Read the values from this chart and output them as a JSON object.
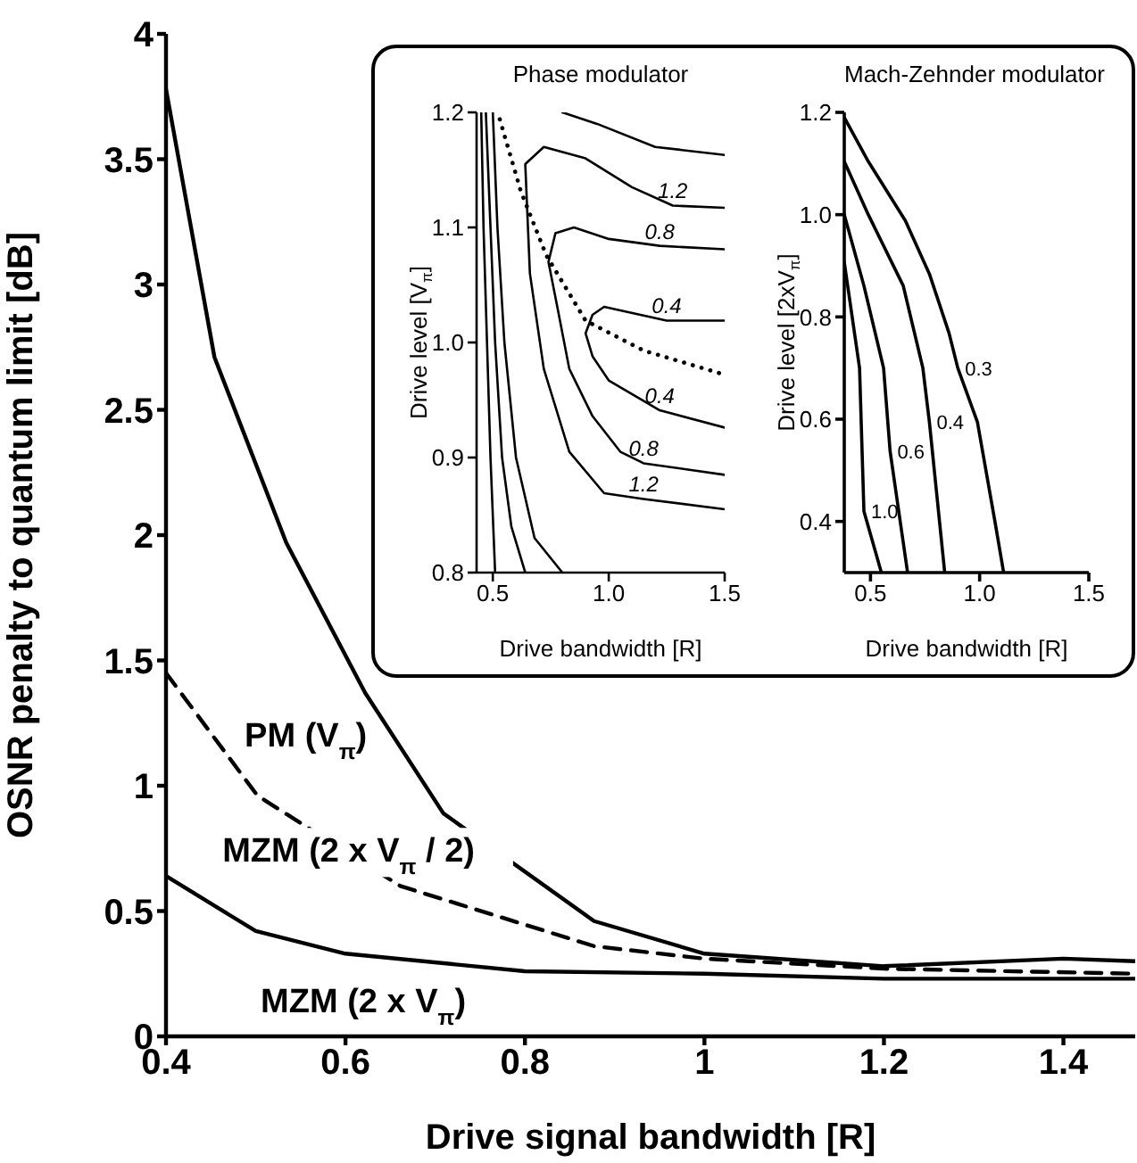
{
  "chart_data": [
    {
      "type": "line",
      "xlabel": "Drive signal bandwidth [R]",
      "ylabel": "OSNR penalty to quantum limit [dB]",
      "xlim": [
        0.4,
        1.48
      ],
      "xticks": [
        0.4,
        0.6,
        0.8,
        1,
        1.2,
        1.4
      ],
      "ylim": [
        0,
        4
      ],
      "yticks": [
        0,
        0.5,
        1,
        1.5,
        2,
        2.5,
        3,
        3.5,
        4
      ],
      "grid": false,
      "marker": "none",
      "series": [
        {
          "name": "PM (V$_{π}$)",
          "color": "#000000",
          "line_style": "solid",
          "x": [
            0.4,
            0.454,
            0.534,
            0.622,
            0.709,
            0.877,
            1.0,
            1.2,
            1.4,
            1.48
          ],
          "values": [
            3.78,
            2.71,
            1.97,
            1.37,
            0.89,
            0.46,
            0.33,
            0.28,
            0.31,
            0.3
          ]
        },
        {
          "name": "MZM (2 x V$_{π}$ / 2)",
          "color": "#000000",
          "line_style": "dashed",
          "x": [
            0.4,
            0.502,
            0.661,
            0.877,
            1.0,
            1.2,
            1.48
          ],
          "values": [
            1.45,
            0.96,
            0.6,
            0.36,
            0.31,
            0.27,
            0.25
          ]
        },
        {
          "name": "MZM (2 x V$_{π}$)",
          "color": "#000000",
          "line_style": "solid",
          "x": [
            0.4,
            0.5,
            0.6,
            0.8,
            1.0,
            1.2,
            1.48
          ],
          "values": [
            0.64,
            0.42,
            0.33,
            0.26,
            0.25,
            0.23,
            0.23
          ]
        }
      ]
    },
    {
      "type": "line",
      "title": "Phase modulator",
      "xlabel": "Drive bandwidth [R]",
      "ylabel": "Drive level [V$_{π}$]",
      "xlim": [
        0.43,
        1.5
      ],
      "xticks": [
        0.5,
        {
          "value": 1,
          "label": "1.0"
        },
        1.5
      ],
      "ylim": [
        0.8,
        1.2
      ],
      "yticks": [
        0.8,
        0.9,
        {
          "value": 1,
          "label": "1.0"
        },
        1.1,
        1.2
      ],
      "grid": false,
      "marker": "none",
      "series": [
        {
          "name": "1.2",
          "color": "#000000",
          "x": [
            1.5,
            1.276,
            1.1,
            0.9,
            0.72,
            0.64,
            0.66,
            0.72,
            0.83,
            0.98,
            1.15,
            1.5
          ],
          "values": [
            1.117,
            1.119,
            1.135,
            1.16,
            1.17,
            1.155,
            1.06,
            0.977,
            0.905,
            0.869,
            0.864,
            0.855
          ]
        },
        {
          "name": "0.8",
          "color": "#000000",
          "x": [
            1.5,
            1.22,
            1.0,
            0.85,
            0.77,
            0.74,
            0.78,
            0.83,
            0.93,
            1.05,
            1.15,
            1.5
          ],
          "values": [
            1.081,
            1.084,
            1.09,
            1.1,
            1.095,
            1.07,
            1.029,
            0.977,
            0.936,
            0.905,
            0.895,
            0.885
          ]
        },
        {
          "name": "0.4",
          "color": "#000000",
          "x": [
            1.5,
            1.25,
            0.98,
            0.93,
            0.9,
            0.93,
            1.0,
            1.22,
            1.5
          ],
          "values": [
            1.019,
            1.019,
            1.031,
            1.024,
            1.008,
            0.988,
            0.967,
            0.941,
            0.926
          ]
        },
        {
          "color": "#000000",
          "line_style": "dotted",
          "x": [
            0.53,
            0.62,
            0.73,
            0.9,
            1.15,
            1.5
          ],
          "values": [
            1.194,
            1.132,
            1.076,
            1.019,
            0.993,
            0.972
          ]
        },
        {
          "color": "#000000",
          "x": [
            1.5,
            1.2,
            0.95,
            0.8
          ],
          "values": [
            1.163,
            1.17,
            1.19,
            1.2
          ]
        },
        {
          "color": "#000000",
          "x": [
            0.5,
            0.52,
            0.55,
            0.6,
            0.68,
            0.8
          ],
          "values": [
            1.2,
            1.1,
            1.0,
            0.9,
            0.83,
            0.8
          ]
        },
        {
          "color": "#000000",
          "x": [
            0.47,
            0.49,
            0.51,
            0.54,
            0.58,
            0.64
          ],
          "values": [
            1.2,
            1.1,
            1.0,
            0.9,
            0.84,
            0.8
          ]
        },
        {
          "color": "#000000",
          "x": [
            0.45,
            0.46,
            0.475,
            0.49,
            0.51
          ],
          "values": [
            1.2,
            1.1,
            1.0,
            0.9,
            0.8
          ]
        }
      ]
    },
    {
      "type": "line",
      "title": "Mach-Zehnder modulator",
      "xlabel": "Drive bandwidth [R]",
      "ylabel": "Drive level [2xV$_{π}$]",
      "xlim": [
        0.38,
        1.5
      ],
      "xticks": [
        0.5,
        {
          "value": 1,
          "label": "1.0"
        },
        1.5
      ],
      "ylim": [
        0.3,
        1.2
      ],
      "yticks": [
        0.4,
        0.6,
        0.8,
        {
          "value": 1,
          "label": "1.0"
        },
        1.2
      ],
      "grid": false,
      "marker": "none",
      "series": [
        {
          "name": "0.3",
          "color": "#000000",
          "x": [
            0.38,
            0.49,
            0.66,
            0.77,
            0.86,
            0.9,
            0.99,
            1.07,
            1.11
          ],
          "values": [
            1.19,
            1.104,
            0.988,
            0.884,
            0.768,
            0.7,
            0.594,
            0.4,
            0.3
          ]
        },
        {
          "name": "0.4",
          "color": "#000000",
          "x": [
            0.38,
            0.49,
            0.65,
            0.74,
            0.77,
            0.8,
            0.84
          ],
          "values": [
            1.104,
            1.0,
            0.861,
            0.7,
            0.594,
            0.468,
            0.3
          ]
        },
        {
          "name": "0.6",
          "color": "#000000",
          "x": [
            0.38,
            0.47,
            0.56,
            0.59,
            0.67
          ],
          "values": [
            1.0,
            0.861,
            0.7,
            0.537,
            0.3
          ]
        },
        {
          "name": "1.0",
          "color": "#000000",
          "x": [
            0.38,
            0.45,
            0.47,
            0.55
          ],
          "values": [
            0.907,
            0.7,
            0.42,
            0.3
          ]
        }
      ]
    }
  ]
}
